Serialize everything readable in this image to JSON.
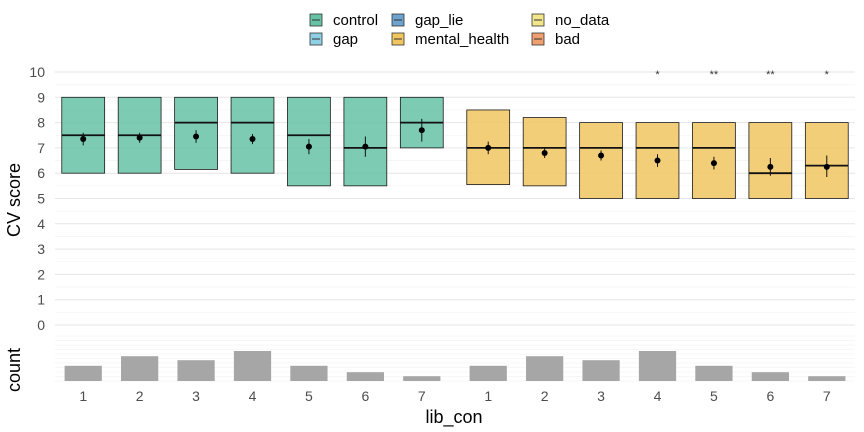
{
  "chart_data": {
    "type": "boxplot",
    "xlabel": "lib_con",
    "ylabel": "CV score",
    "count_label": "count",
    "ylim": [
      0,
      10
    ],
    "y_ticks": [
      "0",
      "1",
      "2",
      "3",
      "4",
      "5",
      "6",
      "7",
      "8",
      "9",
      "10"
    ],
    "categories": [
      "1",
      "2",
      "3",
      "4",
      "5",
      "6",
      "7"
    ],
    "grid": true,
    "legend": {
      "position": "top",
      "entries": [
        {
          "label": "control",
          "color": "#66c2a5"
        },
        {
          "label": "gap",
          "color": "#8ecfe3"
        },
        {
          "label": "gap_lie",
          "color": "#6fa3cf"
        },
        {
          "label": "mental_health",
          "color": "#f0c660"
        },
        {
          "label": "no_data",
          "color": "#f3e58a"
        },
        {
          "label": "bad",
          "color": "#f0a070"
        }
      ]
    },
    "panels": [
      {
        "group": "control",
        "color": "#66c2a5",
        "boxes": [
          {
            "q1": 6.0,
            "median": 7.5,
            "q3": 9.0,
            "mean": 7.35,
            "err_low": 7.1,
            "err_high": 7.6,
            "sig": ""
          },
          {
            "q1": 6.0,
            "median": 7.5,
            "q3": 9.0,
            "mean": 7.4,
            "err_low": 7.2,
            "err_high": 7.6,
            "sig": ""
          },
          {
            "q1": 6.15,
            "median": 8.0,
            "q3": 9.0,
            "mean": 7.45,
            "err_low": 7.2,
            "err_high": 7.7,
            "sig": ""
          },
          {
            "q1": 6.0,
            "median": 8.0,
            "q3": 9.0,
            "mean": 7.35,
            "err_low": 7.15,
            "err_high": 7.55,
            "sig": ""
          },
          {
            "q1": 5.5,
            "median": 7.5,
            "q3": 9.0,
            "mean": 7.05,
            "err_low": 6.75,
            "err_high": 7.35,
            "sig": ""
          },
          {
            "q1": 5.5,
            "median": 7.0,
            "q3": 9.0,
            "mean": 7.05,
            "err_low": 6.65,
            "err_high": 7.45,
            "sig": ""
          },
          {
            "q1": 7.0,
            "median": 8.0,
            "q3": 9.0,
            "mean": 7.7,
            "err_low": 7.25,
            "err_high": 8.15,
            "sig": ""
          }
        ],
        "counts": [
          0.38,
          0.62,
          0.52,
          0.75,
          0.38,
          0.22,
          0.12
        ]
      },
      {
        "group": "mental_health",
        "color": "#f0c660",
        "boxes": [
          {
            "q1": 5.55,
            "median": 7.0,
            "q3": 8.5,
            "mean": 7.0,
            "err_low": 6.75,
            "err_high": 7.25,
            "sig": ""
          },
          {
            "q1": 5.5,
            "median": 7.0,
            "q3": 8.2,
            "mean": 6.8,
            "err_low": 6.6,
            "err_high": 7.0,
            "sig": ""
          },
          {
            "q1": 5.0,
            "median": 7.0,
            "q3": 8.0,
            "mean": 6.7,
            "err_low": 6.5,
            "err_high": 6.9,
            "sig": ""
          },
          {
            "q1": 5.0,
            "median": 7.0,
            "q3": 8.0,
            "mean": 6.5,
            "err_low": 6.25,
            "err_high": 6.75,
            "sig": "*"
          },
          {
            "q1": 5.0,
            "median": 7.0,
            "q3": 8.0,
            "mean": 6.4,
            "err_low": 6.15,
            "err_high": 6.65,
            "sig": "**"
          },
          {
            "q1": 5.0,
            "median": 6.0,
            "q3": 8.0,
            "mean": 6.25,
            "err_low": 5.9,
            "err_high": 6.6,
            "sig": "**"
          },
          {
            "q1": 5.0,
            "median": 6.3,
            "q3": 8.0,
            "mean": 6.25,
            "err_low": 5.85,
            "err_high": 6.7,
            "sig": "*"
          }
        ],
        "counts": [
          0.38,
          0.62,
          0.52,
          0.75,
          0.38,
          0.22,
          0.12
        ]
      }
    ]
  }
}
